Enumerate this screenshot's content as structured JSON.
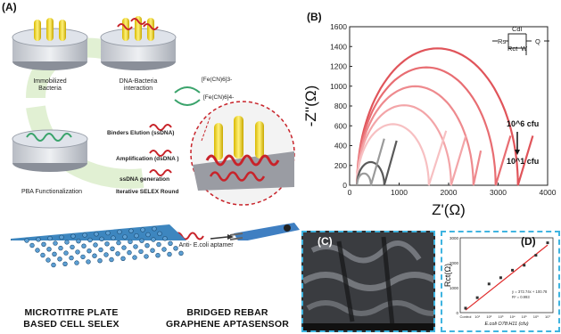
{
  "panels": {
    "a": "(A)",
    "b": "(B)",
    "c": "(C)",
    "d": "(D)"
  },
  "selex": {
    "immobilized": [
      "Immobilized",
      "Bacteria"
    ],
    "interaction": [
      "DNA-Bacteria",
      "interaction"
    ],
    "pba": "PBA Functionalization",
    "binders": "Binders Elution (ssDNA)",
    "amplification": "Amplification (dsDNA )",
    "ssdna": "ssDNA generation",
    "iterative": "Iterative SELEX Round",
    "ferri": "[Fe(CN)6]3-",
    "ferro": "[Fe(CN)6]4-",
    "aptamer": "Anti- E.coli aptamer"
  },
  "captions": {
    "plate": [
      "MICROTITRE PLATE",
      "BASED CELL SELEX"
    ],
    "sensor": [
      "BRIDGED REBAR",
      "GRAPHENE APTASENSOR"
    ]
  },
  "colors": {
    "accent_blue": "#2fa8d8",
    "nyquist_dark": "#e0545a",
    "fit_line": "#e02a2a",
    "plate": "#2e6fa0",
    "aptamer": "#c8232a"
  },
  "chart_data": [
    {
      "type": "line",
      "title": "",
      "xlabel": "Z'(Ω)",
      "ylabel": "-Z''(Ω)",
      "xlim": [
        0,
        4000
      ],
      "ylim": [
        0,
        1600
      ],
      "xticks": [
        "0",
        "1000",
        "2000",
        "3000",
        "4000"
      ],
      "yticks": [
        "0",
        "200",
        "400",
        "600",
        "800",
        "1000",
        "1200",
        "1400",
        "1600"
      ],
      "circuit": {
        "rs": "Rs",
        "cdl": "Cdl",
        "rct": "Rct",
        "w": "W",
        "q": "Q"
      },
      "annotation_high": "10^6 cfu",
      "annotation_low": "10^1 cfu",
      "series": [
        {
          "rs": 150,
          "rct": 3250,
          "tail": 3700,
          "color": "#e0545a"
        },
        {
          "rs": 150,
          "rct": 2800,
          "tail": 3250,
          "color": "#e86d72"
        },
        {
          "rs": 150,
          "rct": 2350,
          "tail": 2650,
          "color": "#ee8a8e"
        },
        {
          "rs": 150,
          "rct": 1900,
          "tail": 2350,
          "color": "#f3a5a8"
        },
        {
          "rs": 150,
          "rct": 1450,
          "tail": 1950,
          "color": "#f7c0c2"
        },
        {
          "rs": 150,
          "rct": 550,
          "tail": 950,
          "color": "#5a5a5a"
        },
        {
          "rs": 150,
          "rct": 280,
          "tail": 700,
          "color": "#9a9a9a"
        }
      ]
    },
    {
      "type": "scatter",
      "xlabel": "E.coli O78:H11 (cfu)",
      "ylabel": "Rct(Ω)",
      "ylim": [
        0,
        3000
      ],
      "yticks": [
        "0",
        "1000",
        "2000",
        "3000"
      ],
      "xticks": [
        "Control",
        "10¹",
        "10²",
        "10³",
        "10⁴",
        "10⁵",
        "10⁶",
        "10⁷"
      ],
      "equation": "y = 372.74x + 100.78",
      "r2": "R² = 0.993",
      "points": [
        {
          "x": 0,
          "y": 180
        },
        {
          "x": 1,
          "y": 600
        },
        {
          "x": 2,
          "y": 1150
        },
        {
          "x": 3,
          "y": 1400
        },
        {
          "x": 4,
          "y": 1700
        },
        {
          "x": 5,
          "y": 1900
        },
        {
          "x": 6,
          "y": 2300
        },
        {
          "x": 7,
          "y": 2800
        }
      ],
      "fit": {
        "slope": 372.74,
        "intercept": 100.78
      }
    }
  ]
}
